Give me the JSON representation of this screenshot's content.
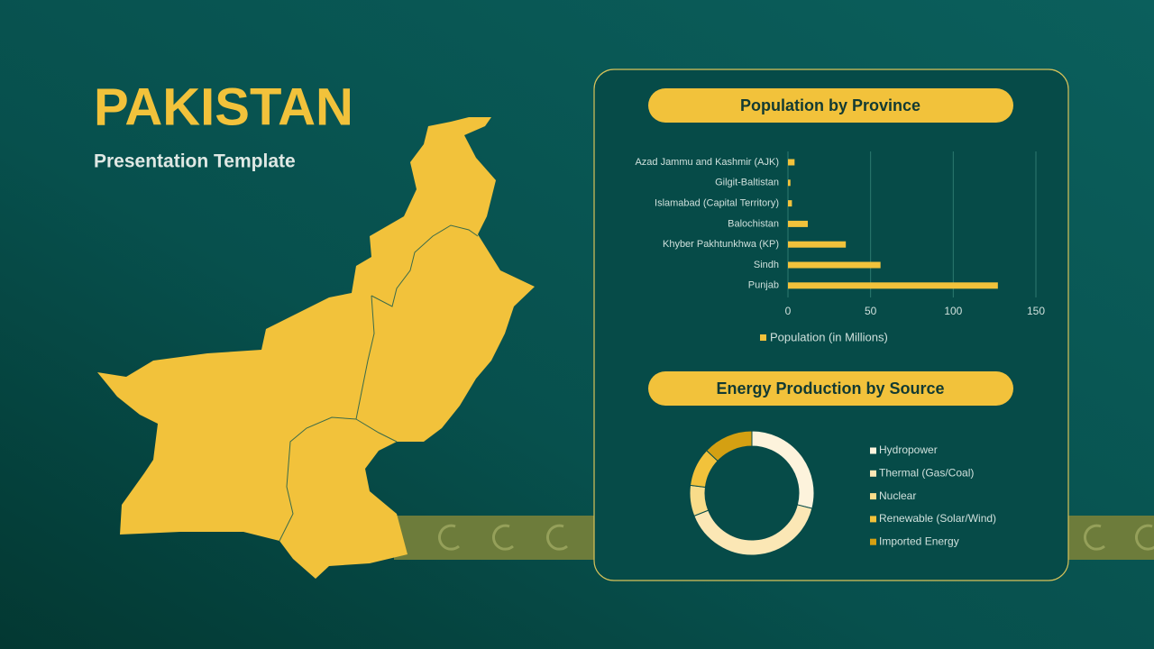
{
  "slide": {
    "title": "PAKISTAN",
    "subtitle": "Presentation Template"
  },
  "chart_data": [
    {
      "type": "barh",
      "title": "Population by Province",
      "categories": [
        "Azad Jammu and Kashmir (AJK)",
        "Gilgit-Baltistan",
        "Islamabad (Capital Territory)",
        "Balochistan",
        "Khyber Pakhtunkhwa (KP)",
        "Sindh",
        "Punjab"
      ],
      "series": [
        {
          "name": "Population (in Millions)",
          "color": "#f2c23b",
          "values": [
            4,
            1.5,
            2.4,
            12,
            35,
            56,
            127
          ]
        }
      ],
      "xlim": [
        0,
        150
      ],
      "xticks": [
        0,
        50,
        100,
        150
      ],
      "grid": true,
      "legend": "bottom"
    },
    {
      "type": "donut",
      "title": "Energy Production by Source",
      "categories": [
        "Hydropower",
        "Thermal (Gas/Coal)",
        "Nuclear",
        "Renewable (Solar/Wind)",
        "Imported Energy"
      ],
      "values": [
        29,
        40,
        8,
        10,
        13
      ],
      "colors": [
        "#fdf3dc",
        "#fbe7b5",
        "#f8dc8a",
        "#f2c23b",
        "#d4a012"
      ],
      "legend": "right"
    }
  ]
}
